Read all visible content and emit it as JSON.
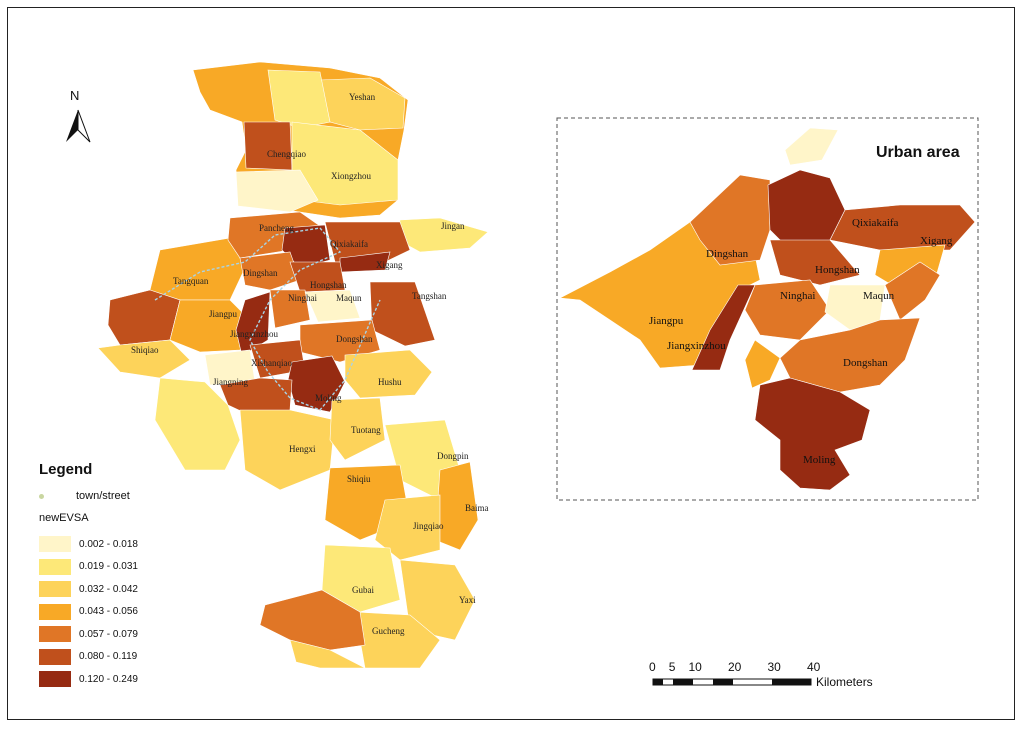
{
  "north_label": "N",
  "urban_title": "Urban area",
  "legend": {
    "title": "Legend",
    "town_label": "town/street",
    "field_name": "newEVSA",
    "classes": [
      {
        "label": "0.002 - 0.018",
        "color": "#fff5c9"
      },
      {
        "label": "0.019 - 0.031",
        "color": "#fde878"
      },
      {
        "label": "0.032 - 0.042",
        "color": "#fdd35a"
      },
      {
        "label": "0.043 - 0.056",
        "color": "#f8a926"
      },
      {
        "label": "0.057 - 0.079",
        "color": "#e07626"
      },
      {
        "label": "0.080 - 0.119",
        "color": "#c0501c"
      },
      {
        "label": "0.120 - 0.249",
        "color": "#962b12"
      }
    ]
  },
  "scale_bar": {
    "ticks": [
      "0",
      "5",
      "10",
      "20",
      "30",
      "40"
    ],
    "unit": "Kilometers"
  },
  "place_labels": [
    "Yeshan",
    "Chengqiao",
    "Xiongzhou",
    "Jingan",
    "Pancheng",
    "Qixiakaifa",
    "Dingshan",
    "Xigang",
    "Tangquan",
    "Hongshan",
    "Tangshan",
    "Jiangpu",
    "Ninghai",
    "Maqun",
    "Jiangxinzhou",
    "Shiqiao",
    "Dongshan",
    "Xishanqiao",
    "Jiangning",
    "Hushu",
    "Moling",
    "Tuotang",
    "Hengxi",
    "Dongpin",
    "Shiqiu",
    "Baima",
    "Jingqiao",
    "Gubai",
    "Yaxi",
    "Gucheng"
  ],
  "urban_labels": [
    "Qixiakaifa",
    "Xigang",
    "Dingshan",
    "Hongshan",
    "Ninghai",
    "Maqun",
    "Jiangpu",
    "Jiangxinzhou",
    "Dongshan",
    "Moling"
  ]
}
